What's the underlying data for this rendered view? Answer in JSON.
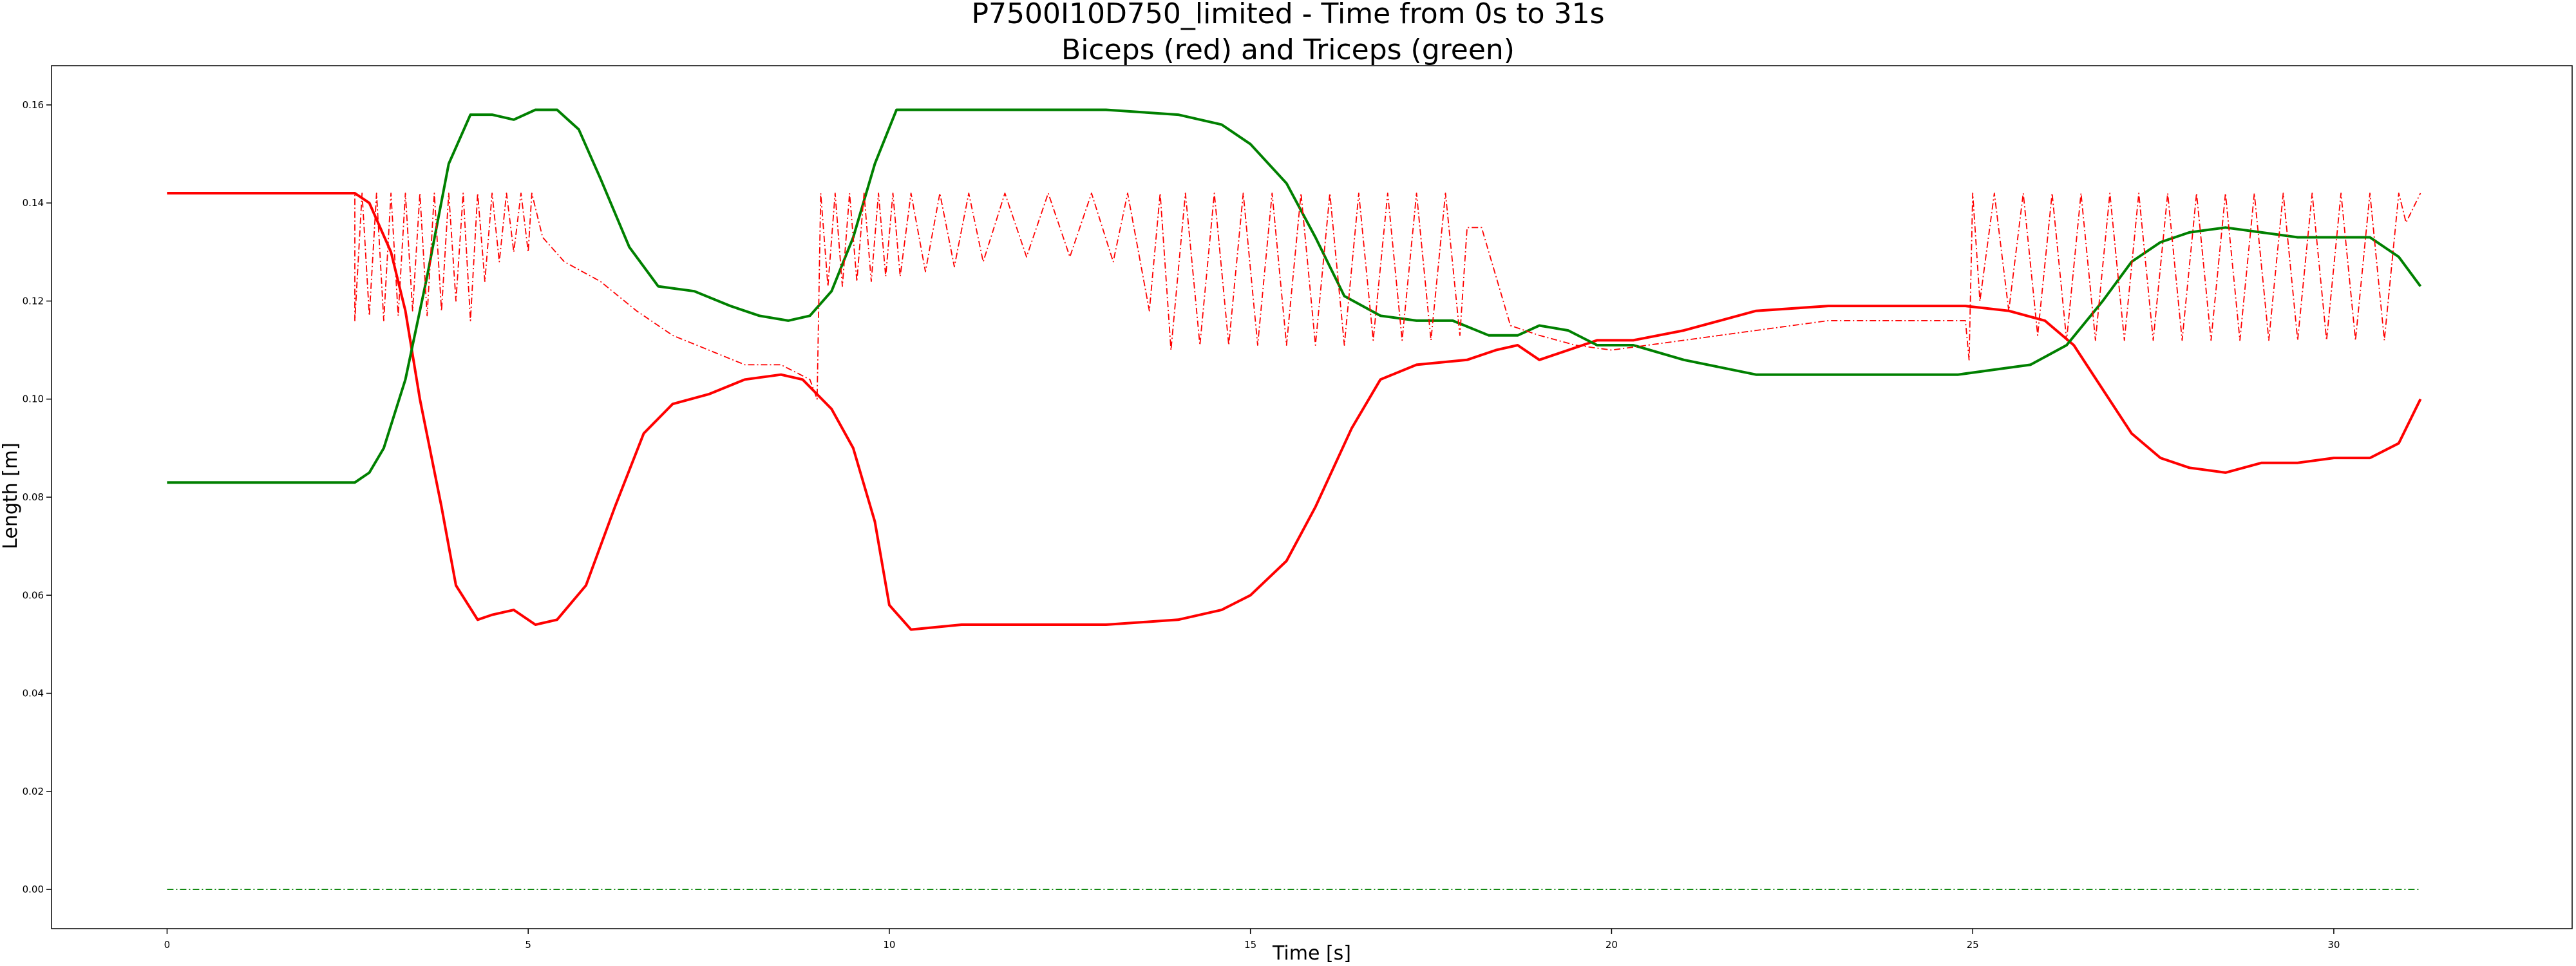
{
  "chart_data": {
    "type": "line",
    "title": "P7500I10D750_limited - Time from 0s to 31s",
    "subtitle": "Biceps (red) and Triceps (green)",
    "xlabel": "Time [s]",
    "ylabel": "Length [m]",
    "xlim": [
      -1.6,
      33.3
    ],
    "ylim": [
      -0.008,
      0.168
    ],
    "x_ticks": [
      0,
      5,
      10,
      15,
      20,
      25,
      30
    ],
    "x_tick_labels": [
      "0",
      "5",
      "10",
      "15",
      "20",
      "25",
      "30"
    ],
    "y_ticks": [
      0.0,
      0.02,
      0.04,
      0.06,
      0.08,
      0.1,
      0.12,
      0.14,
      0.16
    ],
    "y_tick_labels": [
      "0.00",
      "0.02",
      "0.04",
      "0.06",
      "0.08",
      "0.10",
      "0.12",
      "0.14",
      "0.16"
    ],
    "grid": false,
    "colors": {
      "biceps": "#ff0000",
      "triceps": "#008000"
    },
    "series": [
      {
        "key": "biceps_length",
        "color": "#ff0000",
        "style": "solid",
        "points": [
          [
            0,
            0.142
          ],
          [
            2.6,
            0.142
          ],
          [
            2.8,
            0.14
          ],
          [
            3.1,
            0.13
          ],
          [
            3.3,
            0.118
          ],
          [
            3.5,
            0.1
          ],
          [
            3.8,
            0.078
          ],
          [
            4.0,
            0.062
          ],
          [
            4.3,
            0.055
          ],
          [
            4.5,
            0.056
          ],
          [
            4.8,
            0.057
          ],
          [
            5.1,
            0.054
          ],
          [
            5.4,
            0.055
          ],
          [
            5.8,
            0.062
          ],
          [
            6.2,
            0.078
          ],
          [
            6.6,
            0.093
          ],
          [
            7.0,
            0.099
          ],
          [
            7.5,
            0.101
          ],
          [
            8.0,
            0.104
          ],
          [
            8.5,
            0.105
          ],
          [
            8.8,
            0.104
          ],
          [
            9.2,
            0.098
          ],
          [
            9.5,
            0.09
          ],
          [
            9.8,
            0.075
          ],
          [
            10.0,
            0.058
          ],
          [
            10.3,
            0.053
          ],
          [
            11,
            0.054
          ],
          [
            12,
            0.054
          ],
          [
            13,
            0.054
          ],
          [
            14,
            0.055
          ],
          [
            14.6,
            0.057
          ],
          [
            15.0,
            0.06
          ],
          [
            15.5,
            0.067
          ],
          [
            15.9,
            0.078
          ],
          [
            16.4,
            0.094
          ],
          [
            16.8,
            0.104
          ],
          [
            17.3,
            0.107
          ],
          [
            18.0,
            0.108
          ],
          [
            18.4,
            0.11
          ],
          [
            18.7,
            0.111
          ],
          [
            19.0,
            0.108
          ],
          [
            19.4,
            0.11
          ],
          [
            19.8,
            0.112
          ],
          [
            20.3,
            0.112
          ],
          [
            21.0,
            0.114
          ],
          [
            22.0,
            0.118
          ],
          [
            23.0,
            0.119
          ],
          [
            24.0,
            0.119
          ],
          [
            24.9,
            0.119
          ],
          [
            25.5,
            0.118
          ],
          [
            26.0,
            0.116
          ],
          [
            26.4,
            0.111
          ],
          [
            26.8,
            0.102
          ],
          [
            27.2,
            0.093
          ],
          [
            27.6,
            0.088
          ],
          [
            28.0,
            0.086
          ],
          [
            28.5,
            0.085
          ],
          [
            29.0,
            0.087
          ],
          [
            29.5,
            0.087
          ],
          [
            30.0,
            0.088
          ],
          [
            30.5,
            0.088
          ],
          [
            30.9,
            0.091
          ],
          [
            31.2,
            0.1
          ]
        ]
      },
      {
        "key": "triceps_length",
        "color": "#008000",
        "style": "solid",
        "points": [
          [
            0,
            0.083
          ],
          [
            2.6,
            0.083
          ],
          [
            2.8,
            0.085
          ],
          [
            3.0,
            0.09
          ],
          [
            3.3,
            0.104
          ],
          [
            3.6,
            0.125
          ],
          [
            3.9,
            0.148
          ],
          [
            4.2,
            0.158
          ],
          [
            4.5,
            0.158
          ],
          [
            4.8,
            0.157
          ],
          [
            5.1,
            0.159
          ],
          [
            5.4,
            0.159
          ],
          [
            5.7,
            0.155
          ],
          [
            6.0,
            0.145
          ],
          [
            6.4,
            0.131
          ],
          [
            6.8,
            0.123
          ],
          [
            7.3,
            0.122
          ],
          [
            7.8,
            0.119
          ],
          [
            8.2,
            0.117
          ],
          [
            8.6,
            0.116
          ],
          [
            8.9,
            0.117
          ],
          [
            9.2,
            0.122
          ],
          [
            9.5,
            0.133
          ],
          [
            9.8,
            0.148
          ],
          [
            10.1,
            0.159
          ],
          [
            10.5,
            0.159
          ],
          [
            11,
            0.159
          ],
          [
            12,
            0.159
          ],
          [
            13,
            0.159
          ],
          [
            14,
            0.158
          ],
          [
            14.6,
            0.156
          ],
          [
            15.0,
            0.152
          ],
          [
            15.5,
            0.144
          ],
          [
            15.9,
            0.133
          ],
          [
            16.3,
            0.121
          ],
          [
            16.8,
            0.117
          ],
          [
            17.3,
            0.116
          ],
          [
            17.8,
            0.116
          ],
          [
            18.3,
            0.113
          ],
          [
            18.7,
            0.113
          ],
          [
            19.0,
            0.115
          ],
          [
            19.4,
            0.114
          ],
          [
            19.8,
            0.111
          ],
          [
            20.3,
            0.111
          ],
          [
            21.0,
            0.108
          ],
          [
            22.0,
            0.105
          ],
          [
            23.0,
            0.105
          ],
          [
            24.0,
            0.105
          ],
          [
            24.8,
            0.105
          ],
          [
            25.3,
            0.106
          ],
          [
            25.8,
            0.107
          ],
          [
            26.3,
            0.111
          ],
          [
            26.8,
            0.12
          ],
          [
            27.2,
            0.128
          ],
          [
            27.6,
            0.132
          ],
          [
            28.0,
            0.134
          ],
          [
            28.5,
            0.135
          ],
          [
            29.0,
            0.134
          ],
          [
            29.5,
            0.133
          ],
          [
            30.0,
            0.133
          ],
          [
            30.5,
            0.133
          ],
          [
            30.9,
            0.129
          ],
          [
            31.2,
            0.123
          ]
        ]
      },
      {
        "key": "biceps_dashdot",
        "color": "#ff0000",
        "style": "dashdot",
        "points": [
          [
            0,
            0.142
          ],
          [
            2.6,
            0.142
          ],
          [
            2.6,
            0.116
          ],
          [
            2.7,
            0.142
          ],
          [
            2.8,
            0.117
          ],
          [
            2.9,
            0.142
          ],
          [
            3.0,
            0.116
          ],
          [
            3.1,
            0.142
          ],
          [
            3.2,
            0.117
          ],
          [
            3.3,
            0.142
          ],
          [
            3.4,
            0.118
          ],
          [
            3.5,
            0.142
          ],
          [
            3.6,
            0.117
          ],
          [
            3.7,
            0.142
          ],
          [
            3.8,
            0.118
          ],
          [
            3.9,
            0.142
          ],
          [
            4.0,
            0.12
          ],
          [
            4.1,
            0.142
          ],
          [
            4.2,
            0.116
          ],
          [
            4.3,
            0.142
          ],
          [
            4.4,
            0.124
          ],
          [
            4.5,
            0.142
          ],
          [
            4.6,
            0.128
          ],
          [
            4.7,
            0.142
          ],
          [
            4.8,
            0.13
          ],
          [
            4.9,
            0.142
          ],
          [
            5.0,
            0.13
          ],
          [
            5.05,
            0.142
          ],
          [
            5.2,
            0.133
          ],
          [
            5.5,
            0.128
          ],
          [
            6.0,
            0.124
          ],
          [
            6.5,
            0.118
          ],
          [
            7.0,
            0.113
          ],
          [
            7.5,
            0.11
          ],
          [
            8.0,
            0.107
          ],
          [
            8.5,
            0.107
          ],
          [
            8.9,
            0.104
          ],
          [
            9.0,
            0.1
          ],
          [
            9.05,
            0.142
          ],
          [
            9.15,
            0.123
          ],
          [
            9.25,
            0.142
          ],
          [
            9.35,
            0.123
          ],
          [
            9.45,
            0.142
          ],
          [
            9.55,
            0.124
          ],
          [
            9.65,
            0.142
          ],
          [
            9.75,
            0.124
          ],
          [
            9.85,
            0.142
          ],
          [
            9.95,
            0.125
          ],
          [
            10.05,
            0.142
          ],
          [
            10.15,
            0.125
          ],
          [
            10.3,
            0.142
          ],
          [
            10.5,
            0.126
          ],
          [
            10.7,
            0.142
          ],
          [
            10.9,
            0.127
          ],
          [
            11.1,
            0.142
          ],
          [
            11.3,
            0.128
          ],
          [
            11.6,
            0.142
          ],
          [
            11.9,
            0.129
          ],
          [
            12.2,
            0.142
          ],
          [
            12.5,
            0.129
          ],
          [
            12.8,
            0.142
          ],
          [
            13.1,
            0.128
          ],
          [
            13.3,
            0.142
          ],
          [
            13.6,
            0.118
          ],
          [
            13.75,
            0.142
          ],
          [
            13.9,
            0.11
          ],
          [
            14.1,
            0.142
          ],
          [
            14.3,
            0.111
          ],
          [
            14.5,
            0.142
          ],
          [
            14.7,
            0.111
          ],
          [
            14.9,
            0.142
          ],
          [
            15.1,
            0.111
          ],
          [
            15.3,
            0.142
          ],
          [
            15.5,
            0.111
          ],
          [
            15.7,
            0.142
          ],
          [
            15.9,
            0.111
          ],
          [
            16.1,
            0.142
          ],
          [
            16.3,
            0.111
          ],
          [
            16.5,
            0.142
          ],
          [
            16.7,
            0.112
          ],
          [
            16.9,
            0.142
          ],
          [
            17.1,
            0.112
          ],
          [
            17.3,
            0.142
          ],
          [
            17.5,
            0.112
          ],
          [
            17.7,
            0.142
          ],
          [
            17.9,
            0.113
          ],
          [
            18.0,
            0.135
          ],
          [
            18.2,
            0.135
          ],
          [
            18.4,
            0.125
          ],
          [
            18.6,
            0.115
          ],
          [
            19.0,
            0.113
          ],
          [
            19.5,
            0.111
          ],
          [
            20.0,
            0.11
          ],
          [
            21.0,
            0.112
          ],
          [
            22.0,
            0.114
          ],
          [
            23.0,
            0.116
          ],
          [
            24.0,
            0.116
          ],
          [
            24.9,
            0.116
          ],
          [
            24.95,
            0.108
          ],
          [
            25.0,
            0.142
          ],
          [
            25.1,
            0.12
          ],
          [
            25.3,
            0.142
          ],
          [
            25.5,
            0.118
          ],
          [
            25.7,
            0.142
          ],
          [
            25.9,
            0.113
          ],
          [
            26.1,
            0.142
          ],
          [
            26.3,
            0.112
          ],
          [
            26.5,
            0.142
          ],
          [
            26.7,
            0.112
          ],
          [
            26.9,
            0.142
          ],
          [
            27.1,
            0.112
          ],
          [
            27.3,
            0.142
          ],
          [
            27.5,
            0.112
          ],
          [
            27.7,
            0.142
          ],
          [
            27.9,
            0.112
          ],
          [
            28.1,
            0.142
          ],
          [
            28.3,
            0.112
          ],
          [
            28.5,
            0.142
          ],
          [
            28.7,
            0.112
          ],
          [
            28.9,
            0.142
          ],
          [
            29.1,
            0.112
          ],
          [
            29.3,
            0.142
          ],
          [
            29.5,
            0.112
          ],
          [
            29.7,
            0.142
          ],
          [
            29.9,
            0.112
          ],
          [
            30.1,
            0.142
          ],
          [
            30.3,
            0.112
          ],
          [
            30.5,
            0.142
          ],
          [
            30.7,
            0.112
          ],
          [
            30.9,
            0.142
          ],
          [
            31.0,
            0.136
          ],
          [
            31.2,
            0.142
          ]
        ]
      },
      {
        "key": "triceps_dashdot",
        "color": "#008000",
        "style": "dashdot",
        "points": [
          [
            0,
            0.0
          ],
          [
            31.2,
            0.0
          ]
        ]
      }
    ]
  }
}
